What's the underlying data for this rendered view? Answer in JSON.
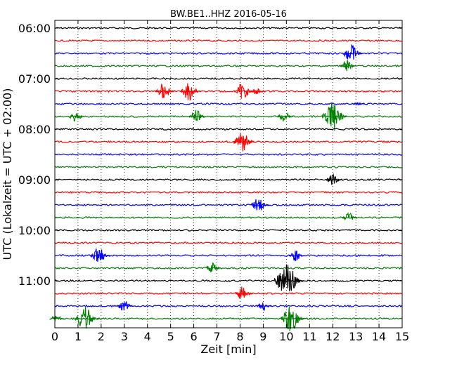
{
  "chart_data": {
    "type": "line",
    "title": "BW.BE1..HHZ 2016-05-16",
    "xlabel": "Zeit  [min]",
    "ylabel": "UTC (Lokalzeit = UTC + 02:00)",
    "xlim": [
      0,
      15
    ],
    "x_ticks": [
      "0",
      "1",
      "2",
      "3",
      "4",
      "5",
      "6",
      "7",
      "8",
      "9",
      "10",
      "11",
      "12",
      "13",
      "14",
      "15"
    ],
    "y_tick_labels": [
      "06:00",
      "07:00",
      "08:00",
      "09:00",
      "10:00",
      "11:00"
    ],
    "row_interval_min": 15,
    "grid": "vertical dotted",
    "colors": [
      "#000000",
      "#ff0000",
      "#0000ff",
      "#008000"
    ],
    "rows": [
      {
        "time": "06:00",
        "color": "#000000",
        "events": []
      },
      {
        "time": "06:15",
        "color": "#ff0000",
        "events": []
      },
      {
        "time": "06:30",
        "color": "#0000ff",
        "events": [
          {
            "t": 12.8,
            "amp": 1.0
          }
        ]
      },
      {
        "time": "06:45",
        "color": "#008000",
        "events": [
          {
            "t": 12.6,
            "amp": 0.6
          }
        ]
      },
      {
        "time": "07:00",
        "color": "#000000",
        "events": []
      },
      {
        "time": "07:15",
        "color": "#ff0000",
        "events": [
          {
            "t": 4.7,
            "amp": 0.9
          },
          {
            "t": 5.8,
            "amp": 1.0
          },
          {
            "t": 8.1,
            "amp": 0.9
          },
          {
            "t": 8.7,
            "amp": 0.4
          }
        ]
      },
      {
        "time": "07:30",
        "color": "#0000ff",
        "events": [
          {
            "t": 13.1,
            "amp": 0.2
          }
        ]
      },
      {
        "time": "07:45",
        "color": "#008000",
        "events": [
          {
            "t": 0.9,
            "amp": 0.6
          },
          {
            "t": 6.1,
            "amp": 0.7
          },
          {
            "t": 9.9,
            "amp": 0.6
          },
          {
            "t": 12.0,
            "amp": 1.6
          }
        ]
      },
      {
        "time": "08:00",
        "color": "#000000",
        "events": []
      },
      {
        "time": "08:15",
        "color": "#ff0000",
        "events": [
          {
            "t": 8.1,
            "amp": 1.1
          }
        ]
      },
      {
        "time": "08:30",
        "color": "#0000ff",
        "events": []
      },
      {
        "time": "08:45",
        "color": "#008000",
        "events": []
      },
      {
        "time": "09:00",
        "color": "#000000",
        "events": [
          {
            "t": 12.0,
            "amp": 0.6
          }
        ]
      },
      {
        "time": "09:15",
        "color": "#ff0000",
        "events": []
      },
      {
        "time": "09:30",
        "color": "#0000ff",
        "events": [
          {
            "t": 8.8,
            "amp": 0.8
          }
        ]
      },
      {
        "time": "09:45",
        "color": "#008000",
        "events": [
          {
            "t": 12.7,
            "amp": 0.5
          }
        ]
      },
      {
        "time": "10:00",
        "color": "#000000",
        "events": []
      },
      {
        "time": "10:15",
        "color": "#ff0000",
        "events": []
      },
      {
        "time": "10:30",
        "color": "#0000ff",
        "events": [
          {
            "t": 1.9,
            "amp": 0.9
          },
          {
            "t": 10.4,
            "amp": 0.6
          }
        ]
      },
      {
        "time": "10:45",
        "color": "#008000",
        "events": [
          {
            "t": 6.8,
            "amp": 0.6
          }
        ]
      },
      {
        "time": "11:00",
        "color": "#000000",
        "events": [
          {
            "t": 10.0,
            "amp": 1.9
          }
        ]
      },
      {
        "time": "11:15",
        "color": "#ff0000",
        "events": [
          {
            "t": 8.1,
            "amp": 0.8
          }
        ]
      },
      {
        "time": "11:30",
        "color": "#0000ff",
        "events": [
          {
            "t": 3.0,
            "amp": 0.6
          },
          {
            "t": 9.0,
            "amp": 0.5
          }
        ]
      },
      {
        "time": "11:45",
        "color": "#008000",
        "events": [
          {
            "t": 0.05,
            "amp": 0.5
          },
          {
            "t": 1.3,
            "amp": 1.3
          },
          {
            "t": 10.2,
            "amp": 1.4
          }
        ]
      }
    ]
  }
}
